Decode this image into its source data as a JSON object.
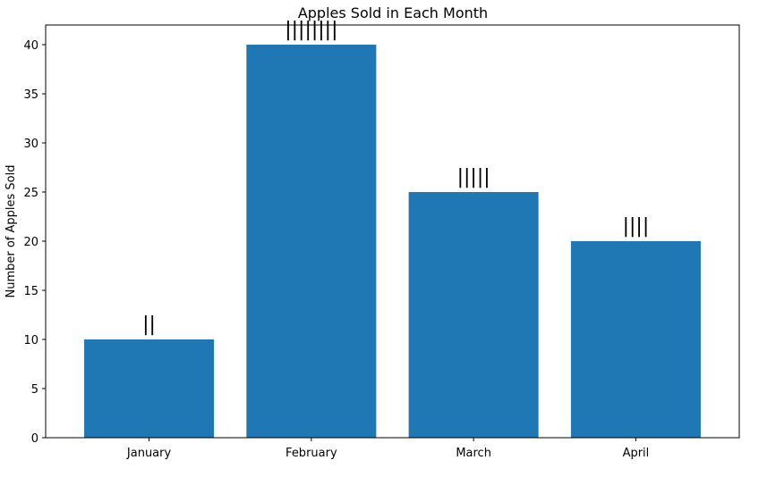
{
  "chart_data": {
    "type": "bar",
    "title": "Apples Sold in Each Month",
    "xlabel": "",
    "ylabel": "Number of Apples Sold",
    "categories": [
      "January",
      "February",
      "March",
      "April"
    ],
    "values": [
      10,
      40,
      25,
      20
    ],
    "bar_labels": [
      "||",
      "||||||||",
      "|||||",
      "||||"
    ],
    "ylim": [
      0,
      42
    ],
    "yticks": [
      0,
      5,
      10,
      15,
      20,
      25,
      30,
      35,
      40
    ],
    "grid": false,
    "bar_color": "#1f77b4"
  }
}
